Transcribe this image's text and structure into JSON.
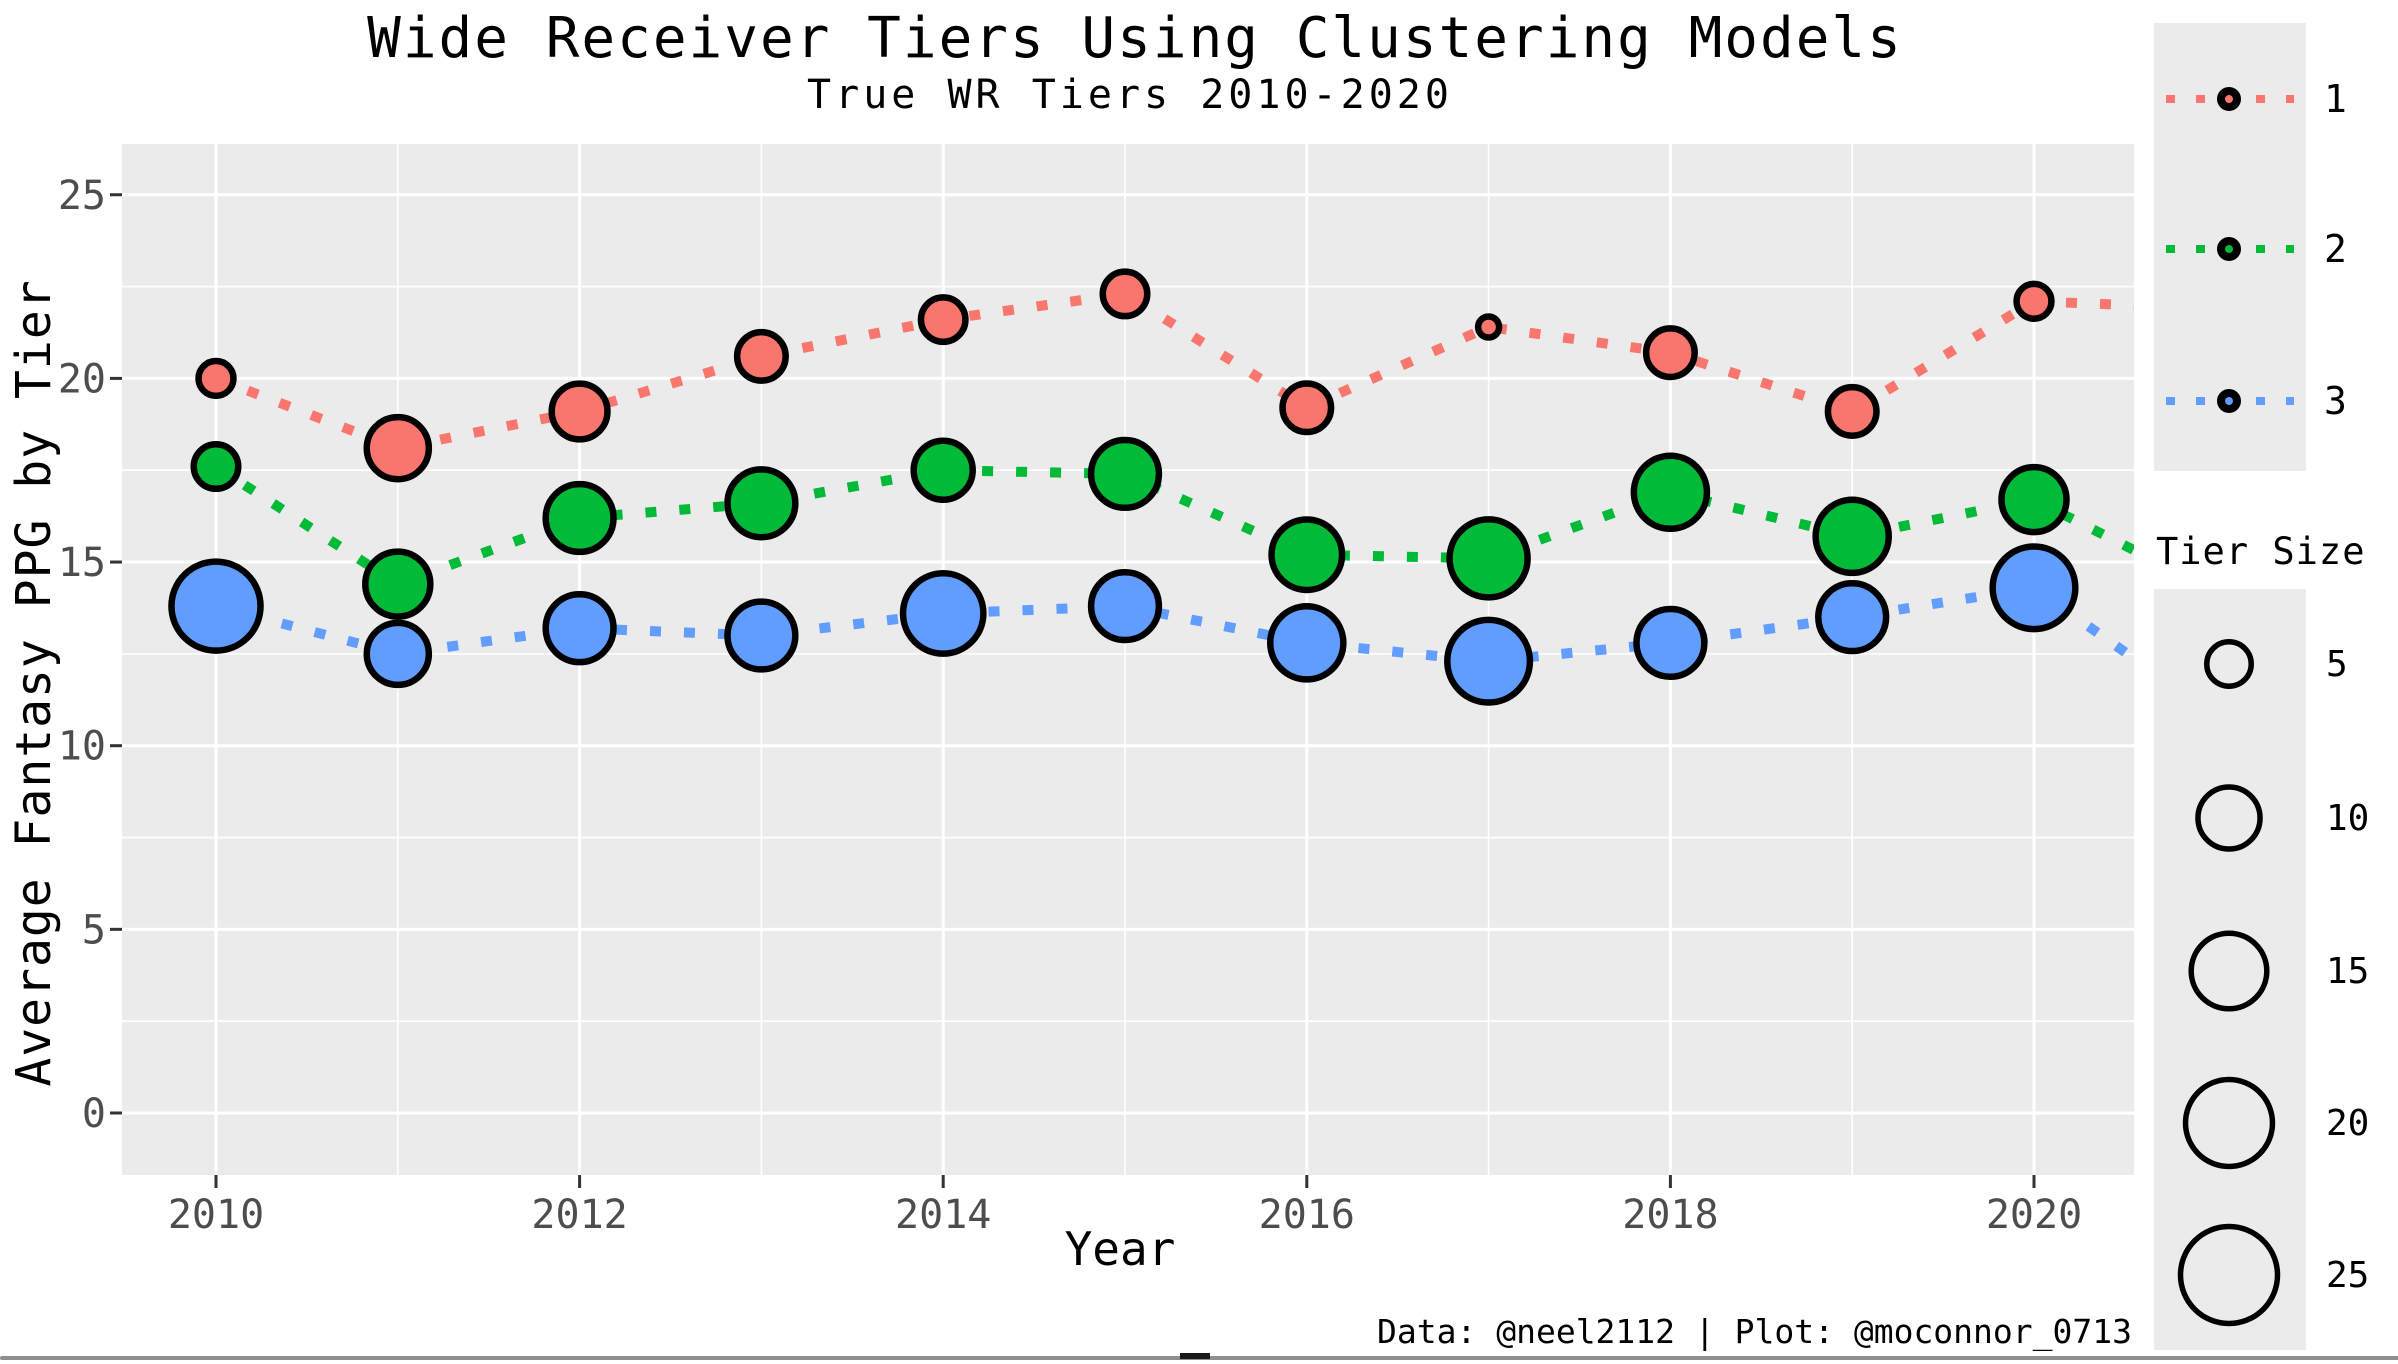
{
  "header": {
    "title": "Wide Receiver Tiers Using Clustering Models",
    "subtitle": "True WR Tiers 2010-2020"
  },
  "caption": "Data: @neel2112 | Plot: @moconnor_0713",
  "colors": {
    "tier1": "#F8766D",
    "tier2": "#00BA38",
    "tier3": "#619CFF",
    "panel_bg": "#EBEBEB",
    "gridline": "#FFFFFF",
    "tick_text": "#4D4D4D",
    "axis_text": "#000000",
    "bubble_stroke": "#000000",
    "legend_bg": "#EBEBEB"
  },
  "axes": {
    "x": {
      "label": "Year",
      "tick_labels": [
        "2010",
        "2012",
        "2014",
        "2016",
        "2018",
        "2020"
      ]
    },
    "y": {
      "label": "Average Fantasy PPG by Tier",
      "tick_labels": [
        "0",
        "5",
        "10",
        "15",
        "20",
        "25"
      ]
    }
  },
  "legend_tier": {
    "items": [
      {
        "label": "1",
        "color": "#F8766D"
      },
      {
        "label": "2",
        "color": "#00BA38"
      },
      {
        "label": "3",
        "color": "#619CFF"
      }
    ]
  },
  "legend_size": {
    "title": "Tier Size",
    "items": [
      {
        "label": "5",
        "size": 5
      },
      {
        "label": "10",
        "size": 10
      },
      {
        "label": "15",
        "size": 15
      },
      {
        "label": "20",
        "size": 20
      },
      {
        "label": "25",
        "size": 25
      }
    ]
  },
  "chart_data": {
    "type": "scatter",
    "subtype": "bubble-with-dotted-lines",
    "title": "Wide Receiver Tiers Using Clustering Models",
    "subtitle": "True WR Tiers 2010-2020",
    "xlabel": "Year",
    "ylabel": "Average Fantasy PPG by Tier",
    "x_ticks": [
      2010,
      2012,
      2014,
      2016,
      2018,
      2020
    ],
    "x_minor_ticks": [
      2011,
      2013,
      2015,
      2017,
      2019
    ],
    "y_ticks": [
      0,
      5,
      10,
      15,
      20,
      25
    ],
    "y_minor_ticks": [
      2.5,
      7.5,
      12.5,
      17.5,
      22.5
    ],
    "xlim": [
      2009.5,
      2020.55
    ],
    "ylim": [
      -1.7,
      25.9
    ],
    "grid": "white major+minor on gray panel",
    "legend_position": "right",
    "size_legend_values": [
      5,
      10,
      15,
      20,
      25
    ],
    "x": [
      2010,
      2011,
      2012,
      2013,
      2014,
      2015,
      2016,
      2017,
      2018,
      2019,
      2020
    ],
    "series": [
      {
        "name": "1",
        "tier": 1,
        "color": "#F8766D",
        "ppg": [
          20.0,
          18.1,
          19.1,
          20.6,
          21.6,
          22.3,
          19.2,
          21.4,
          20.7,
          19.1,
          22.1
        ],
        "tier_size": [
          3,
          10,
          8,
          6,
          5,
          5,
          6,
          1,
          6,
          6,
          3
        ],
        "clipped_edge_ppg_2021": 21.9
      },
      {
        "name": "2",
        "tier": 2,
        "color": "#00BA38",
        "ppg": [
          17.6,
          14.4,
          16.2,
          16.6,
          17.5,
          17.4,
          15.2,
          15.1,
          16.9,
          15.7,
          16.7
        ],
        "tier_size": [
          5,
          11,
          12,
          12,
          9,
          12,
          13,
          16,
          14,
          14,
          11
        ],
        "clipped_edge_ppg_2021": 14.2
      },
      {
        "name": "3",
        "tier": 3,
        "color": "#619CFF",
        "ppg": [
          13.8,
          12.5,
          13.2,
          13.0,
          13.6,
          13.8,
          12.8,
          12.3,
          12.8,
          13.5,
          14.3
        ],
        "tier_size": [
          21,
          10,
          12,
          12,
          17,
          12,
          14,
          18,
          12,
          12,
          18
        ],
        "clipped_edge_ppg_2021": 10.8
      }
    ]
  }
}
